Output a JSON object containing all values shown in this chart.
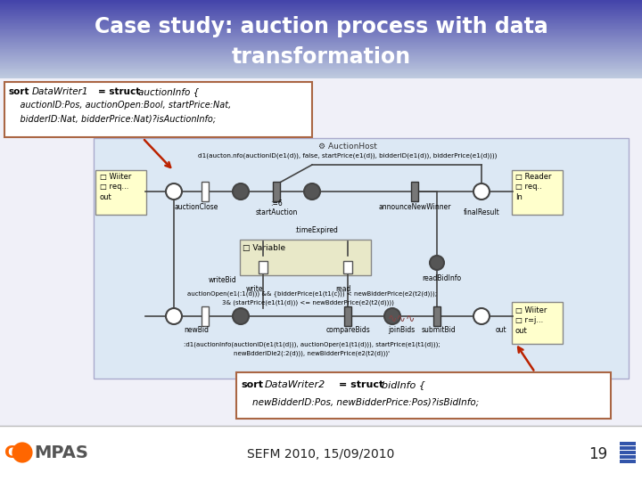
{
  "title_line1": "Case study: auction process with data",
  "title_line2": "transformation",
  "footer_text": "SEFM 2010, 15/09/2010",
  "page_number": "19",
  "slide_bg": "#f0f0f8",
  "header_top_color": "#4444aa",
  "header_bot_color": "#aab8d8",
  "body_bg": "#e8eaf0",
  "diagram_bg": "#dce8f4",
  "sort1_lines": [
    "sort DataWriter1 = struct  auctionInfo {",
    "    auctionID:Pos, auctionOpen:Bool, startPrice:Nat,",
    "    bidderID:Nat, bidderPrice:Nat)?isAuctionInfo;"
  ],
  "sort2_lines": [
    "sort DataWriter2 = struct  bidInfo {",
    "    newBidderID:Pos, newBidderPrice:Pos)?isBidInfo;"
  ],
  "arrow_color": "#bb2200",
  "box_color": "#ffffcc",
  "writer_color": "#ffffcc",
  "reader_color": "#ffffcc",
  "place_fill": "#ffffff",
  "trans_fill": "#888888",
  "var_fill": "#e8e8c8"
}
